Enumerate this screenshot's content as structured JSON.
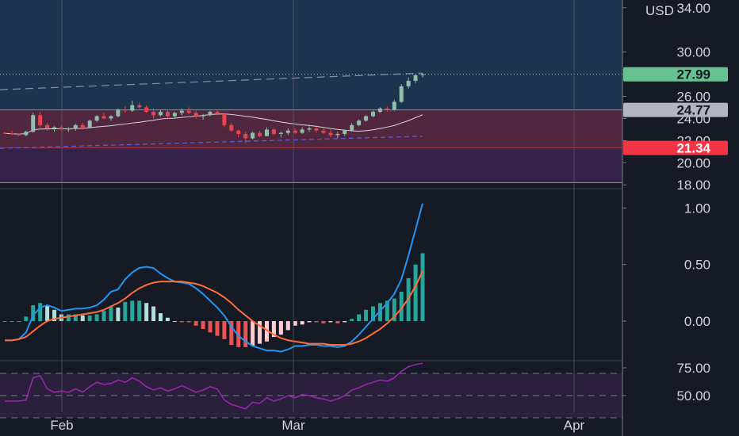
{
  "chart_data": [
    {
      "type": "candlestick",
      "panel": "price",
      "currency_label": "USD",
      "y_ticks": [
        34.0,
        30.0,
        26.0,
        24.0,
        22.0,
        20.0,
        18.0
      ],
      "ylim": [
        17.8,
        34.7
      ],
      "x_labels": [
        "Feb",
        "Mar",
        "Apr"
      ],
      "price_tags": [
        {
          "value": 27.99,
          "label": "27.99",
          "bg": "#66c28f",
          "fg": "#131722"
        },
        {
          "value": 24.77,
          "label": "24.77",
          "bg": "#b2b5be",
          "fg": "#131722"
        },
        {
          "value": 21.34,
          "label": "21.34",
          "bg": "#f23645",
          "fg": "#ffffff"
        }
      ],
      "zones": [
        {
          "from": 24.77,
          "to": 34.7,
          "color": "#1f3a57"
        },
        {
          "from": 21.34,
          "to": 24.77,
          "color": "#5a2a44"
        },
        {
          "from": 18.2,
          "to": 21.34,
          "color": "#3a2550"
        }
      ],
      "colors": {
        "up": "#8fbfa8",
        "down": "#e8464a",
        "ma": "#d8d8d8",
        "trend": "#8a8fa8"
      },
      "ohlc": [
        [
          22.7,
          22.8,
          22.6,
          22.65
        ],
        [
          22.65,
          22.9,
          22.5,
          22.6
        ],
        [
          22.6,
          22.7,
          22.4,
          22.5
        ],
        [
          22.5,
          22.9,
          22.4,
          22.8
        ],
        [
          22.8,
          24.5,
          22.7,
          24.3
        ],
        [
          24.3,
          24.6,
          23.2,
          23.4
        ],
        [
          23.4,
          23.6,
          22.9,
          23.1
        ],
        [
          23.1,
          23.3,
          22.8,
          23.2
        ],
        [
          23.2,
          23.4,
          22.9,
          23.0
        ],
        [
          23.0,
          23.2,
          22.8,
          23.1
        ],
        [
          23.1,
          23.5,
          22.9,
          23.4
        ],
        [
          23.4,
          23.6,
          23.0,
          23.2
        ],
        [
          23.2,
          23.9,
          23.1,
          23.8
        ],
        [
          23.8,
          24.3,
          23.7,
          24.2
        ],
        [
          24.2,
          24.5,
          23.9,
          24.0
        ],
        [
          24.0,
          24.3,
          23.8,
          24.2
        ],
        [
          24.2,
          24.9,
          24.1,
          24.8
        ],
        [
          24.8,
          25.1,
          24.5,
          24.7
        ],
        [
          24.7,
          25.6,
          24.6,
          25.2
        ],
        [
          25.2,
          25.4,
          24.9,
          25.0
        ],
        [
          25.0,
          25.2,
          24.5,
          24.6
        ],
        [
          24.6,
          24.9,
          24.0,
          24.3
        ],
        [
          24.3,
          24.8,
          24.2,
          24.6
        ],
        [
          24.6,
          24.8,
          24.1,
          24.2
        ],
        [
          24.2,
          24.6,
          24.0,
          24.5
        ],
        [
          24.5,
          24.9,
          24.3,
          24.7
        ],
        [
          24.7,
          25.0,
          24.4,
          24.5
        ],
        [
          24.5,
          24.7,
          24.0,
          24.2
        ],
        [
          24.2,
          24.4,
          23.9,
          24.3
        ],
        [
          24.3,
          24.7,
          24.2,
          24.6
        ],
        [
          24.6,
          24.8,
          24.3,
          24.4
        ],
        [
          24.4,
          24.5,
          23.2,
          23.4
        ],
        [
          23.4,
          23.6,
          22.8,
          22.9
        ],
        [
          22.9,
          23.0,
          22.3,
          22.6
        ],
        [
          22.6,
          22.8,
          21.8,
          22.2
        ],
        [
          22.2,
          22.8,
          22.1,
          22.7
        ],
        [
          22.7,
          22.9,
          22.3,
          22.4
        ],
        [
          22.4,
          23.2,
          22.4,
          23.0
        ],
        [
          23.0,
          23.1,
          22.5,
          22.6
        ],
        [
          22.6,
          22.8,
          22.3,
          22.7
        ],
        [
          22.7,
          23.1,
          22.5,
          22.9
        ],
        [
          22.9,
          23.1,
          22.6,
          22.7
        ],
        [
          22.7,
          23.2,
          22.6,
          23.0
        ],
        [
          23.0,
          23.3,
          22.8,
          23.1
        ],
        [
          23.1,
          23.2,
          22.7,
          22.9
        ],
        [
          22.9,
          23.1,
          22.6,
          22.7
        ],
        [
          22.7,
          23.0,
          22.3,
          22.5
        ],
        [
          22.5,
          22.8,
          22.2,
          22.6
        ],
        [
          22.6,
          23.0,
          22.4,
          22.9
        ],
        [
          22.9,
          23.6,
          22.8,
          23.4
        ],
        [
          23.4,
          23.9,
          23.3,
          23.8
        ],
        [
          23.8,
          24.3,
          23.7,
          24.2
        ],
        [
          24.2,
          24.7,
          24.1,
          24.6
        ],
        [
          24.6,
          25.0,
          24.5,
          24.9
        ],
        [
          24.9,
          25.1,
          24.6,
          24.8
        ],
        [
          24.8,
          25.7,
          24.7,
          25.5
        ],
        [
          25.5,
          27.1,
          25.4,
          26.9
        ],
        [
          26.9,
          27.7,
          26.7,
          27.4
        ],
        [
          27.4,
          28.0,
          27.2,
          27.9
        ],
        [
          27.9,
          28.1,
          27.7,
          27.99
        ]
      ]
    },
    {
      "type": "line",
      "panel": "macd",
      "y_ticks": [
        1.0,
        0.5,
        0.0
      ],
      "ylim": [
        -0.35,
        1.15
      ],
      "series": [
        {
          "color": "#2196f3",
          "values": [
            -0.17,
            -0.17,
            -0.16,
            -0.1,
            0.05,
            0.12,
            0.14,
            0.12,
            0.09,
            0.1,
            0.11,
            0.11,
            0.12,
            0.14,
            0.19,
            0.26,
            0.28,
            0.37,
            0.43,
            0.47,
            0.48,
            0.47,
            0.42,
            0.38,
            0.35,
            0.34,
            0.33,
            0.29,
            0.24,
            0.18,
            0.12,
            0.05,
            -0.05,
            -0.13,
            -0.18,
            -0.22,
            -0.24,
            -0.26,
            -0.26,
            -0.27,
            -0.25,
            -0.22,
            -0.22,
            -0.21,
            -0.21,
            -0.22,
            -0.22,
            -0.23,
            -0.22,
            -0.18,
            -0.12,
            -0.05,
            0.02,
            0.09,
            0.16,
            0.24,
            0.37,
            0.58,
            0.81,
            1.04
          ]
        },
        {
          "color": "#ff6d3a",
          "values": [
            -0.17,
            -0.17,
            -0.16,
            -0.14,
            -0.09,
            -0.04,
            0.0,
            0.02,
            0.03,
            0.04,
            0.05,
            0.06,
            0.07,
            0.08,
            0.1,
            0.13,
            0.16,
            0.2,
            0.25,
            0.29,
            0.32,
            0.34,
            0.35,
            0.35,
            0.35,
            0.35,
            0.34,
            0.33,
            0.31,
            0.28,
            0.25,
            0.21,
            0.16,
            0.1,
            0.05,
            0.0,
            -0.04,
            -0.08,
            -0.12,
            -0.15,
            -0.17,
            -0.18,
            -0.19,
            -0.2,
            -0.2,
            -0.2,
            -0.21,
            -0.21,
            -0.21,
            -0.2,
            -0.18,
            -0.15,
            -0.11,
            -0.07,
            -0.02,
            0.04,
            0.11,
            0.2,
            0.31,
            0.44
          ]
        }
      ],
      "histogram": {
        "pos_strong": "#26a69a",
        "pos_weak": "#b2dfdb",
        "neg_strong": "#ef5350",
        "neg_weak": "#ffcdd2",
        "values": [
          0.0,
          0.0,
          0.0,
          0.04,
          0.14,
          0.16,
          0.14,
          0.1,
          0.06,
          0.06,
          0.06,
          0.05,
          0.05,
          0.06,
          0.09,
          0.13,
          0.12,
          0.17,
          0.18,
          0.18,
          0.16,
          0.13,
          0.07,
          0.03,
          0.0,
          -0.01,
          -0.01,
          -0.04,
          -0.07,
          -0.1,
          -0.13,
          -0.16,
          -0.21,
          -0.23,
          -0.23,
          -0.22,
          -0.2,
          -0.18,
          -0.14,
          -0.12,
          -0.08,
          -0.04,
          -0.03,
          -0.01,
          -0.01,
          -0.02,
          -0.01,
          -0.02,
          -0.01,
          0.02,
          0.06,
          0.1,
          0.13,
          0.16,
          0.18,
          0.2,
          0.26,
          0.38,
          0.5,
          0.6
        ]
      }
    },
    {
      "type": "line",
      "panel": "rsi",
      "y_ticks": [
        75.0,
        50.0
      ],
      "ylim": [
        35,
        80
      ],
      "bands": [
        70,
        50,
        30
      ],
      "series": [
        {
          "color": "#9c27b0",
          "values": [
            45,
            45,
            45,
            46,
            66,
            68,
            56,
            53,
            54,
            53,
            56,
            53,
            58,
            62,
            60,
            61,
            64,
            62,
            66,
            63,
            58,
            55,
            57,
            54,
            56,
            59,
            56,
            53,
            55,
            58,
            56,
            46,
            42,
            40,
            38,
            44,
            43,
            48,
            45,
            47,
            50,
            48,
            51,
            50,
            48,
            47,
            45,
            47,
            50,
            55,
            57,
            60,
            62,
            64,
            63,
            66,
            72,
            76,
            78,
            79
          ]
        }
      ]
    }
  ]
}
